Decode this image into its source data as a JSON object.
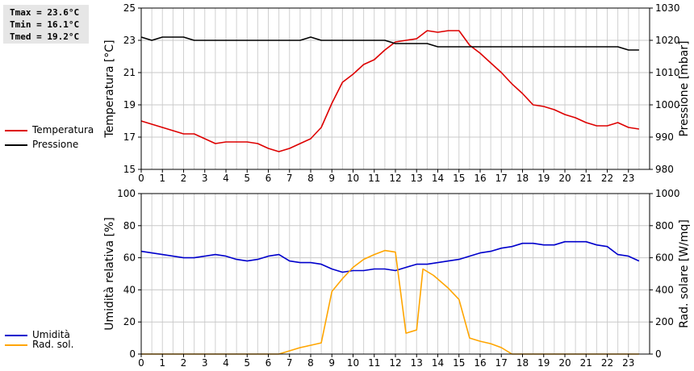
{
  "stats": {
    "tmax": "Tmax = 23.6°C",
    "tmin": "Tmin = 16.1°C",
    "tmed": "Tmed = 19.2°C"
  },
  "legend_top": [
    {
      "label": "Temperatura",
      "color": "#dd0000"
    },
    {
      "label": "Pressione",
      "color": "#000000"
    }
  ],
  "legend_bottom": [
    {
      "label": "Umidità",
      "color": "#0000cc"
    },
    {
      "label": "Rad. sol.",
      "color": "#ffa500"
    }
  ],
  "chart_data": [
    {
      "type": "line",
      "xlabel": "",
      "x_ticks": [
        0,
        1,
        2,
        3,
        4,
        5,
        6,
        7,
        8,
        9,
        10,
        11,
        12,
        13,
        14,
        15,
        16,
        17,
        18,
        19,
        20,
        21,
        22,
        23
      ],
      "xlim": [
        0,
        24
      ],
      "grid": true,
      "left_axis": {
        "label": "Temperatura [°C]",
        "ylim": [
          15,
          25
        ],
        "ticks": [
          15,
          17,
          19,
          21,
          23,
          25
        ]
      },
      "right_axis": {
        "label": "Pressione [mbar]",
        "ylim": [
          980,
          1030
        ],
        "ticks": [
          980,
          990,
          1000,
          1010,
          1020,
          1030
        ]
      },
      "series": [
        {
          "name": "Temperatura",
          "axis": "left",
          "color": "#dd0000",
          "x": [
            0,
            0.5,
            1,
            1.5,
            2,
            2.5,
            3,
            3.5,
            4,
            4.5,
            5,
            5.5,
            6,
            6.5,
            7,
            7.5,
            8,
            8.5,
            9,
            9.5,
            10,
            10.5,
            11,
            11.5,
            12,
            12.5,
            13,
            13.5,
            14,
            14.5,
            15,
            15.5,
            16,
            16.5,
            17,
            17.5,
            18,
            18.5,
            19,
            19.5,
            20,
            20.5,
            21,
            21.5,
            22,
            22.5,
            23,
            23.5
          ],
          "y": [
            18.0,
            17.8,
            17.6,
            17.4,
            17.2,
            17.2,
            16.9,
            16.6,
            16.7,
            16.7,
            16.7,
            16.6,
            16.3,
            16.1,
            16.3,
            16.6,
            16.9,
            17.6,
            19.1,
            20.4,
            20.9,
            21.5,
            21.8,
            22.4,
            22.9,
            23.0,
            23.1,
            23.6,
            23.5,
            23.6,
            23.6,
            22.7,
            22.2,
            21.6,
            21.0,
            20.3,
            19.7,
            19.0,
            18.9,
            18.7,
            18.4,
            18.2,
            17.9,
            17.7,
            17.7,
            17.9,
            17.6,
            17.5
          ]
        },
        {
          "name": "Pressione",
          "axis": "right",
          "color": "#000000",
          "x": [
            0,
            0.5,
            1,
            1.5,
            2,
            2.5,
            3,
            3.5,
            4,
            4.5,
            5,
            5.5,
            6,
            6.5,
            7,
            7.5,
            8,
            8.5,
            9,
            9.5,
            10,
            10.5,
            11,
            11.5,
            12,
            12.5,
            13,
            13.5,
            14,
            14.5,
            15,
            15.5,
            16,
            16.5,
            17,
            17.5,
            18,
            18.5,
            19,
            19.5,
            20,
            20.5,
            21,
            21.5,
            22,
            22.5,
            23,
            23.5
          ],
          "y": [
            1021,
            1020,
            1021,
            1021,
            1021,
            1020,
            1020,
            1020,
            1020,
            1020,
            1020,
            1020,
            1020,
            1020,
            1020,
            1020,
            1021,
            1020,
            1020,
            1020,
            1020,
            1020,
            1020,
            1020,
            1019,
            1019,
            1019,
            1019,
            1018,
            1018,
            1018,
            1018,
            1018,
            1018,
            1018,
            1018,
            1018,
            1018,
            1018,
            1018,
            1018,
            1018,
            1018,
            1018,
            1018,
            1018,
            1017,
            1017
          ]
        }
      ]
    },
    {
      "type": "line",
      "xlabel": "",
      "x_ticks": [
        0,
        1,
        2,
        3,
        4,
        5,
        6,
        7,
        8,
        9,
        10,
        11,
        12,
        13,
        14,
        15,
        16,
        17,
        18,
        19,
        20,
        21,
        22,
        23
      ],
      "xlim": [
        0,
        24
      ],
      "grid": true,
      "left_axis": {
        "label": "Umidità relativa [%]",
        "ylim": [
          0,
          100
        ],
        "ticks": [
          0,
          20,
          40,
          60,
          80,
          100
        ]
      },
      "right_axis": {
        "label": "Rad. solare [W/mq]",
        "ylim": [
          0,
          1000
        ],
        "ticks": [
          0,
          200,
          400,
          600,
          800,
          1000
        ]
      },
      "series": [
        {
          "name": "Umidità",
          "axis": "left",
          "color": "#0000cc",
          "x": [
            0,
            0.5,
            1,
            1.5,
            2,
            2.5,
            3,
            3.5,
            4,
            4.5,
            5,
            5.5,
            6,
            6.5,
            7,
            7.5,
            8,
            8.5,
            9,
            9.5,
            10,
            10.5,
            11,
            11.5,
            12,
            12.5,
            13,
            13.5,
            14,
            14.5,
            15,
            15.5,
            16,
            16.5,
            17,
            17.5,
            18,
            18.5,
            19,
            19.5,
            20,
            20.5,
            21,
            21.5,
            22,
            22.5,
            23,
            23.5
          ],
          "y": [
            64,
            63,
            62,
            61,
            60,
            60,
            61,
            62,
            61,
            59,
            58,
            59,
            61,
            62,
            58,
            57,
            57,
            56,
            53,
            51,
            52,
            52,
            53,
            53,
            52,
            54,
            56,
            56,
            57,
            58,
            59,
            61,
            63,
            64,
            66,
            67,
            69,
            69,
            68,
            68,
            70,
            70,
            70,
            68,
            67,
            62,
            61,
            58
          ]
        },
        {
          "name": "Rad. sol.",
          "axis": "right",
          "color": "#ffa500",
          "x": [
            0,
            1,
            2,
            3,
            4,
            5,
            6,
            6.5,
            7,
            7.5,
            8,
            8.5,
            9,
            9.5,
            10,
            10.5,
            11,
            11.5,
            12,
            12.5,
            13,
            13.3,
            13.8,
            14.5,
            15,
            15.5,
            16,
            16.5,
            17,
            17.5,
            18,
            19,
            20,
            21,
            22,
            23,
            23.5
          ],
          "y": [
            0,
            0,
            0,
            0,
            0,
            0,
            0,
            0,
            20,
            40,
            55,
            70,
            390,
            470,
            540,
            590,
            620,
            645,
            635,
            130,
            150,
            530,
            490,
            410,
            340,
            100,
            80,
            65,
            40,
            0,
            0,
            0,
            0,
            0,
            0,
            0,
            0
          ]
        }
      ]
    }
  ]
}
